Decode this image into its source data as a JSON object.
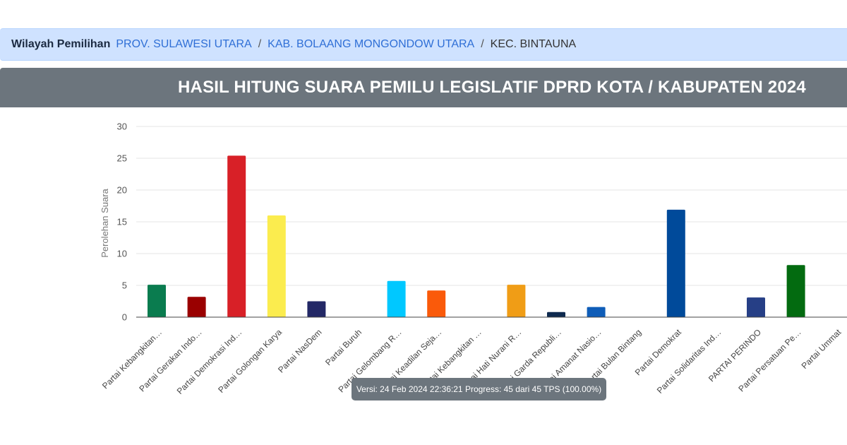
{
  "breadcrumb": {
    "label": "Wilayah Pemilihan",
    "items": [
      "PROV. SULAWESI UTARA",
      "KAB. BOLAANG MONGONDOW UTARA",
      "KEC. BINTAUNA"
    ],
    "separator": "/"
  },
  "header": {
    "title": "HASIL HITUNG SUARA PEMILU LEGISLATIF DPRD KOTA / KABUPATEN 2024"
  },
  "status": {
    "text": "Versi: 24 Feb 2024 22:36:21 Progress: 45 dari 45 TPS (100.00%)"
  },
  "chart_data": {
    "type": "bar",
    "title": "",
    "xlabel": "",
    "ylabel": "Perolehan Suara",
    "ylim": [
      0,
      30
    ],
    "yticks": [
      0,
      5,
      10,
      15,
      20,
      25,
      30
    ],
    "grid": true,
    "categories": [
      "Partai Kebangkitan…",
      "Partai Gerakan Indo…",
      "Partai Demokrasi Ind…",
      "Partai Golongan Karya",
      "Partai NasDem",
      "Partai Buruh",
      "Partai Gelombang R…",
      "Partai Keadilan Seja…",
      "Partai Kebangkitan …",
      "Partai Hati Nurani R…",
      "Partai Garda Republi…",
      "Partai Amanat Nasio…",
      "Partai Bulan Bintang",
      "Partai Demokrat",
      "Partai Solidaritas Ind…",
      "PARTAI PERINDO",
      "Partai Persatuan Pe…",
      "Partai Ummat"
    ],
    "values": [
      5.1,
      3.2,
      25.4,
      16.0,
      2.5,
      0,
      5.7,
      4.2,
      0,
      5.1,
      0.8,
      1.6,
      0,
      16.9,
      0,
      3.1,
      8.2,
      0
    ],
    "colors": [
      "#0a7c4f",
      "#9a0000",
      "#d82027",
      "#fbec4e",
      "#232866",
      "#d66a1d",
      "#00c8ff",
      "#fa5a0a",
      "#046b3a",
      "#f09d16",
      "#0e2a4f",
      "#0f5db8",
      "#0a5c2e",
      "#004a9a",
      "#d9363e",
      "#263f86",
      "#036b10",
      "#1a1a1a"
    ]
  }
}
